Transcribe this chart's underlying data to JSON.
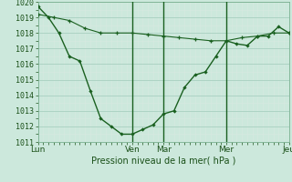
{
  "xlabel": "Pression niveau de la mer( hPa )",
  "bg_color": "#cce8dc",
  "line_color": "#1a6020",
  "grid_major_color": "#a8cfc0",
  "grid_minor_color": "#d8e8e0",
  "xlim": [
    0,
    96
  ],
  "ylim": [
    1011,
    1020
  ],
  "yticks": [
    1011,
    1012,
    1013,
    1014,
    1015,
    1016,
    1017,
    1018,
    1019,
    1020
  ],
  "day_ticks_x": [
    0,
    36,
    48,
    72,
    96
  ],
  "day_labels": [
    "Lun",
    "Ven",
    "Mar",
    "Mer",
    "Jeu"
  ],
  "vlines": [
    36,
    48,
    72
  ],
  "series1_x": [
    0,
    6,
    12,
    18,
    24,
    30,
    36,
    42,
    48,
    54,
    60,
    66,
    72,
    78,
    84,
    90,
    96
  ],
  "series1_y": [
    1019.2,
    1019.0,
    1018.8,
    1018.3,
    1018.0,
    1018.0,
    1018.0,
    1017.9,
    1017.8,
    1017.7,
    1017.6,
    1017.5,
    1017.5,
    1017.7,
    1017.8,
    1018.0,
    1018.0
  ],
  "series2_x": [
    0,
    4,
    8,
    12,
    16,
    20,
    24,
    28,
    32,
    36,
    40,
    44,
    48,
    52,
    56,
    60,
    64,
    68,
    72,
    76,
    80,
    84,
    88,
    92,
    96
  ],
  "series2_y": [
    1019.7,
    1019.0,
    1018.0,
    1016.5,
    1016.2,
    1014.3,
    1012.5,
    1012.0,
    1011.5,
    1011.5,
    1011.8,
    1012.1,
    1012.8,
    1013.0,
    1014.5,
    1015.3,
    1015.5,
    1016.5,
    1017.5,
    1017.3,
    1017.2,
    1017.8,
    1017.8,
    1018.4,
    1018.0
  ]
}
